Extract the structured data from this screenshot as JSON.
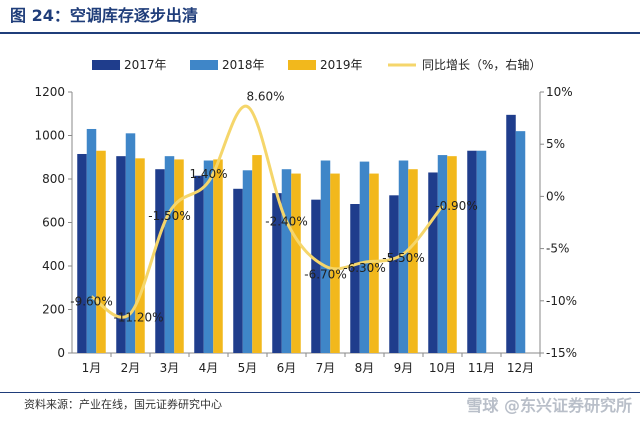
{
  "figure": {
    "title": "图 24：空调库存逐步出清",
    "source": "资料来源：产业在线，国元证券研究中心",
    "watermark": "雪球 @东兴证券研究所"
  },
  "colors": {
    "title": "#1f3d7a",
    "s2017": "#1f3d8c",
    "s2018": "#3f86c8",
    "s2019": "#f2b81c",
    "yoy": "#f5d66b",
    "axis": "#8a8a8a",
    "text": "#222222"
  },
  "chart_data": {
    "type": "bar",
    "categories": [
      "1月",
      "2月",
      "3月",
      "4月",
      "5月",
      "6月",
      "7月",
      "8月",
      "9月",
      "10月",
      "11月",
      "12月"
    ],
    "series": [
      {
        "name": "2017年",
        "values": [
          915,
          905,
          845,
          815,
          755,
          735,
          705,
          685,
          725,
          830,
          930,
          1095
        ]
      },
      {
        "name": "2018年",
        "values": [
          1030,
          1010,
          905,
          885,
          840,
          845,
          885,
          880,
          885,
          910,
          930,
          1020
        ]
      },
      {
        "name": "2019年",
        "values": [
          930,
          895,
          890,
          890,
          910,
          825,
          825,
          825,
          845,
          905,
          null,
          null
        ]
      }
    ],
    "line_series": {
      "name": "同比增长（%，右轴）",
      "values": [
        -9.6,
        -11.2,
        -1.5,
        1.4,
        8.6,
        -2.4,
        -6.7,
        -6.3,
        -5.5,
        -0.9,
        null,
        null
      ],
      "labels": [
        "-9.60%",
        "-11.20%",
        "-1.50%",
        "1.40%",
        "8.60%",
        "-2.40%",
        "-6.70%",
        "-6.30%",
        "-5.50%",
        "-0.90%",
        "",
        ""
      ]
    },
    "ylim": [
      0,
      1200
    ],
    "yticks": [
      "0",
      "200",
      "400",
      "600",
      "800",
      "1000",
      "1200"
    ],
    "y2lim": [
      -15,
      10
    ],
    "y2ticks": [
      "-15%",
      "-10%",
      "-5%",
      "0%",
      "5%",
      "10%"
    ],
    "legend_position": "top",
    "grid": false
  }
}
